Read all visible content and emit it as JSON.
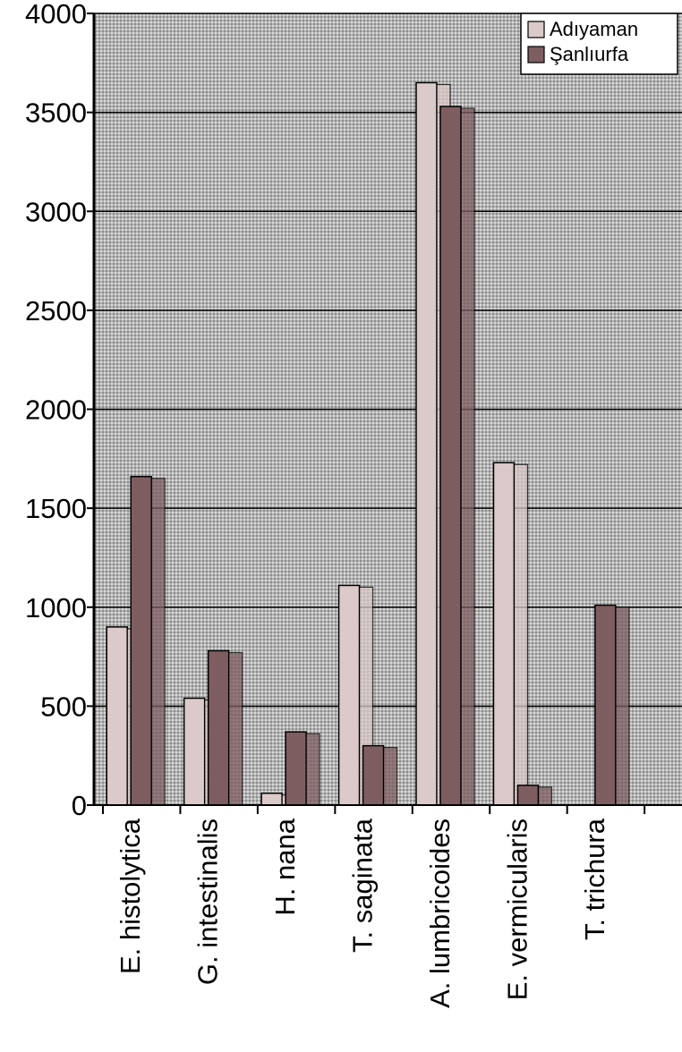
{
  "chart_data": {
    "type": "bar",
    "categories": [
      "E. histolytica",
      "G. intestinalis",
      "H. nana",
      "T. saginata",
      "A. lumbricoides",
      "E. vermicularis",
      "T. trichura"
    ],
    "series": [
      {
        "name": "Adıyaman",
        "values": [
          900,
          540,
          60,
          1110,
          3650,
          1730,
          0
        ],
        "color": "#dcc9c9"
      },
      {
        "name": "Şanlıurfa",
        "values": [
          1660,
          780,
          370,
          300,
          3530,
          100,
          1010
        ],
        "color": "#7e5d61"
      }
    ],
    "yticks": [
      0,
      500,
      1000,
      1500,
      2000,
      2500,
      3000,
      3500,
      4000
    ],
    "ylim": [
      0,
      4000
    ],
    "grid": true,
    "legend_position": "top-right",
    "title": "",
    "xlabel": "",
    "ylabel": ""
  }
}
